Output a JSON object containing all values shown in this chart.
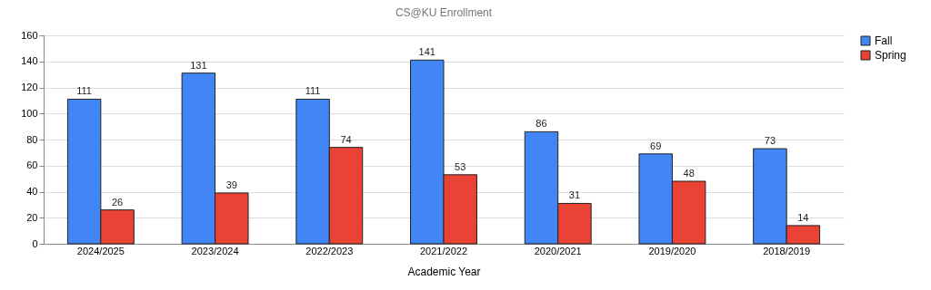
{
  "chart_data": {
    "type": "bar",
    "title": "CS@KU Enrollment",
    "xlabel": "Academic Year",
    "categories": [
      "2024/2025",
      "2023/2024",
      "2022/2023",
      "2021/2022",
      "2020/2021",
      "2019/2020",
      "2018/2019"
    ],
    "series": [
      {
        "name": "Fall",
        "color": "#4285f4",
        "values": [
          111,
          131,
          111,
          141,
          86,
          69,
          73
        ]
      },
      {
        "name": "Spring",
        "color": "#ea4335",
        "values": [
          26,
          39,
          74,
          53,
          31,
          48,
          14
        ]
      }
    ],
    "ylim": [
      0,
      160
    ],
    "yticks": [
      0,
      20,
      40,
      60,
      80,
      100,
      120,
      140,
      160
    ],
    "grid": "y",
    "legend": "right",
    "data_labels": true
  }
}
